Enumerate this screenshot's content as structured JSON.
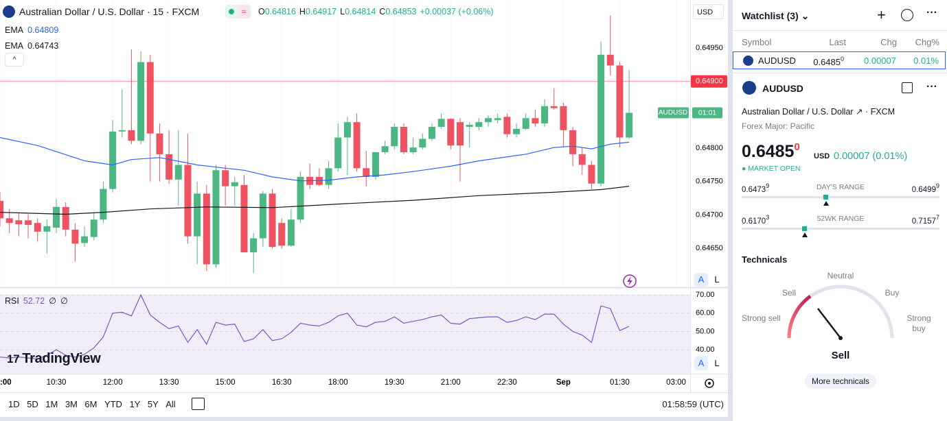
{
  "header": {
    "title": "Australian Dollar / U.S. Dollar · 15 · FXCM",
    "ohlc": [
      {
        "label": "O",
        "value": "0.64816"
      },
      {
        "label": "H",
        "value": "0.64917"
      },
      {
        "label": "L",
        "value": "0.64814"
      },
      {
        "label": "C",
        "value": "0.64853"
      }
    ],
    "change": "+0.00037 (+0.06%)"
  },
  "axis_currency": "USD",
  "scale_buttons": [
    "A",
    "L"
  ],
  "logo": "TradingView",
  "chart_data": [
    {
      "type": "candlestick",
      "open": [
        0.64721,
        0.64695,
        0.64692,
        0.64692,
        0.64688,
        0.64675,
        0.64681,
        0.64712,
        0.64678,
        0.64658,
        0.64667,
        0.64693,
        0.64739,
        0.64825,
        0.64827,
        0.64811,
        0.64929,
        0.64822,
        0.64791,
        0.64753,
        0.64775,
        0.64668,
        0.64732,
        0.64626,
        0.64767,
        0.64743,
        0.64745,
        0.64644,
        0.64665,
        0.64732,
        0.64688,
        0.64654,
        0.64693,
        0.64757,
        0.64757,
        0.64745,
        0.6477,
        0.64816,
        0.64839,
        0.6477,
        0.64757,
        0.64794,
        0.64803,
        0.64832,
        0.64794,
        0.64801,
        0.64814,
        0.64832,
        0.64844,
        0.64839,
        0.64832,
        0.64832,
        0.64839,
        0.64842,
        0.64847,
        0.64821,
        0.64829,
        0.64845,
        0.64837,
        0.64863,
        0.64863,
        0.64827,
        0.64791,
        0.64775,
        0.64747,
        0.6494,
        0.64924,
        0.64816
      ],
      "high": [
        0.64734,
        0.64709,
        0.64704,
        0.64701,
        0.64695,
        0.64693,
        0.64724,
        0.64719,
        0.64688,
        0.64683,
        0.64704,
        0.6475,
        0.64842,
        0.64888,
        0.64948,
        0.64945,
        0.6494,
        0.64837,
        0.64827,
        0.64827,
        0.64822,
        0.6475,
        0.64745,
        0.64775,
        0.64775,
        0.64757,
        0.6476,
        0.64673,
        0.64736,
        0.64739,
        0.64695,
        0.64709,
        0.64765,
        0.64777,
        0.6477,
        0.64781,
        0.64837,
        0.64847,
        0.64852,
        0.64796,
        0.64794,
        0.64811,
        0.64837,
        0.64837,
        0.64816,
        0.64822,
        0.64837,
        0.64852,
        0.64845,
        0.64845,
        0.64839,
        0.64845,
        0.64849,
        0.64852,
        0.64852,
        0.64837,
        0.64852,
        0.64858,
        0.64873,
        0.6489,
        0.64868,
        0.64832,
        0.64801,
        0.64781,
        0.6496,
        0.64999,
        0.64929,
        0.64917
      ],
      "low": [
        0.64683,
        0.64673,
        0.64668,
        0.64665,
        0.6466,
        0.64642,
        0.64673,
        0.64668,
        0.6463,
        0.64652,
        0.64662,
        0.64688,
        0.64734,
        0.64816,
        0.64806,
        0.64806,
        0.6475,
        0.6475,
        0.64747,
        0.64714,
        0.64657,
        0.64626,
        0.64616,
        0.64621,
        0.64714,
        0.64714,
        0.64644,
        0.64613,
        0.64652,
        0.6465,
        0.6465,
        0.64652,
        0.64688,
        0.64739,
        0.64743,
        0.64739,
        0.64765,
        0.6476,
        0.64765,
        0.64743,
        0.64753,
        0.64791,
        0.64798,
        0.64791,
        0.64791,
        0.64798,
        0.64811,
        0.64829,
        0.64798,
        0.6475,
        0.64801,
        0.64827,
        0.64832,
        0.64837,
        0.64816,
        0.64816,
        0.64827,
        0.64832,
        0.64832,
        0.64858,
        0.64801,
        0.64773,
        0.6476,
        0.64739,
        0.64743,
        0.64909,
        0.64801,
        0.64814
      ],
      "close": [
        0.64695,
        0.64688,
        0.64686,
        0.64685,
        0.64675,
        0.64683,
        0.64712,
        0.64678,
        0.64657,
        0.64668,
        0.64693,
        0.64739,
        0.64825,
        0.64827,
        0.64811,
        0.64929,
        0.64822,
        0.64791,
        0.64753,
        0.64775,
        0.64668,
        0.64732,
        0.64626,
        0.64767,
        0.64743,
        0.64749,
        0.64644,
        0.64665,
        0.64732,
        0.64652,
        0.64654,
        0.64693,
        0.64757,
        0.64745,
        0.64745,
        0.6477,
        0.64816,
        0.64839,
        0.6477,
        0.64757,
        0.64794,
        0.64803,
        0.64832,
        0.64794,
        0.64801,
        0.64814,
        0.64832,
        0.64844,
        0.64804,
        0.64804,
        0.64835,
        0.64839,
        0.64845,
        0.64845,
        0.64821,
        0.64829,
        0.64845,
        0.64837,
        0.64863,
        0.6486,
        0.64827,
        0.64791,
        0.64775,
        0.64747,
        0.6494,
        0.64924,
        0.64816,
        0.64853
      ],
      "up_color": "#4cb782",
      "down_color": "#ef5361",
      "xlim": [
        0,
        73.5
      ],
      "xticks": [
        {
          "value": 0,
          "label": ":00"
        },
        {
          "value": 6,
          "label": "10:30"
        },
        {
          "value": 12,
          "label": "12:00"
        },
        {
          "value": 18,
          "label": "13:30"
        },
        {
          "value": 24,
          "label": "15:00"
        },
        {
          "value": 30,
          "label": "16:30"
        },
        {
          "value": 36,
          "label": "18:00"
        },
        {
          "value": 42,
          "label": "19:30"
        },
        {
          "value": 48,
          "label": "21:00"
        },
        {
          "value": 54,
          "label": "22:30"
        },
        {
          "value": 60,
          "label": "Sep"
        },
        {
          "value": 66,
          "label": "01:30"
        },
        {
          "value": 72,
          "label": "03:00"
        }
      ],
      "ylim": [
        0.64606,
        0.65022
      ],
      "yticks": [
        {
          "value": 0.6465,
          "label": "0.64650"
        },
        {
          "value": 0.647,
          "label": "0.64700"
        },
        {
          "value": 0.6475,
          "label": "0.64750"
        },
        {
          "value": 0.648,
          "label": "0.64800"
        },
        {
          "value": 0.6495,
          "label": "0.64950"
        }
      ],
      "grid": false,
      "series": [
        {
          "name": "EMA",
          "legend_value": "0.64809",
          "color": "#2962ff",
          "x": [
            0,
            4,
            9,
            12,
            14,
            17,
            21,
            24,
            26,
            29,
            32,
            35,
            38,
            41,
            44,
            48,
            51,
            56,
            59,
            61,
            63,
            65,
            67
          ],
          "values": [
            0.64816,
            0.64804,
            0.64781,
            0.64775,
            0.64783,
            0.64786,
            0.64775,
            0.6477,
            0.64767,
            0.64757,
            0.64751,
            0.64752,
            0.64757,
            0.6476,
            0.64765,
            0.64773,
            0.64781,
            0.64791,
            0.64801,
            0.64803,
            0.64799,
            0.64806,
            0.64809
          ]
        },
        {
          "name": "EMA",
          "legend_value": "0.64743",
          "color": "#131722",
          "x": [
            0,
            7,
            11,
            16,
            22,
            29,
            33,
            37,
            44,
            51,
            59,
            64,
            67
          ],
          "values": [
            0.64704,
            0.64701,
            0.64704,
            0.64709,
            0.64712,
            0.64711,
            0.64714,
            0.64717,
            0.64722,
            0.64729,
            0.64734,
            0.64738,
            0.64743
          ]
        }
      ],
      "price_line": {
        "value": 0.649,
        "label": "0.64900",
        "color": "#f23645"
      },
      "last_price": {
        "symbol": "AUDUSD",
        "countdown": "01:01"
      }
    },
    {
      "type": "line",
      "name": "RSI",
      "legend_value": "52.72",
      "legend_extras": [
        "∅",
        "∅"
      ],
      "color": "#7e57c2",
      "values": [
        36,
        35.5,
        36,
        35.5,
        35,
        37,
        40,
        37,
        36,
        37.5,
        41,
        47,
        60,
        60.5,
        58.5,
        70,
        59,
        55,
        51.5,
        53,
        44,
        51,
        43,
        55,
        53.5,
        54,
        44.5,
        46,
        51,
        45,
        46,
        49.5,
        54.5,
        53.5,
        53,
        55,
        58.5,
        60,
        53.5,
        52.5,
        55,
        55.5,
        58,
        54.5,
        55.5,
        56.5,
        58,
        59,
        54.5,
        54,
        57,
        57.5,
        58,
        58,
        55,
        56,
        58,
        56.5,
        59.5,
        59.5,
        54,
        50,
        48,
        44,
        64,
        62.5,
        50.5,
        52.72
      ],
      "ylim": [
        26.9,
        71.9
      ],
      "yticks": [
        {
          "value": 40,
          "label": "40.00"
        },
        {
          "value": 50,
          "label": "50.00"
        },
        {
          "value": 60,
          "label": "60.00"
        },
        {
          "value": 70,
          "label": "70.00"
        }
      ]
    }
  ],
  "toolbar": {
    "periods": [
      "1D",
      "5D",
      "1M",
      "3M",
      "6M",
      "YTD",
      "1Y",
      "5Y",
      "All"
    ],
    "clock": "01:58:59 (UTC)"
  },
  "watchlist": {
    "title": "Watchlist (3)",
    "columns": [
      "Symbol",
      "Last",
      "Chg",
      "Chg%"
    ],
    "rows": [
      {
        "symbol": "AUDUSD",
        "last": "0.6485",
        "last_sup": "0",
        "chg": "0.00007",
        "chg_pct": "0.01%"
      }
    ]
  },
  "details": {
    "symbol": "AUDUSD",
    "name": "Australian Dollar / U.S. Dollar",
    "exchange": "FXCM",
    "category": "Forex Major: Pacific",
    "price": "0.6485",
    "price_sup": "0",
    "currency": "USD",
    "change": "0.00007 (0.01%)",
    "status": "MARKET OPEN",
    "ranges": [
      {
        "low": "0.6473",
        "low_sup": "9",
        "label": "DAY'S RANGE",
        "high": "0.6499",
        "high_sup": "9"
      },
      {
        "low": "0.6170",
        "low_sup": "3",
        "label": "52WK RANGE",
        "high": "0.7157",
        "high_sup": "7"
      }
    ]
  },
  "technicals": {
    "title": "Technicals",
    "labels": {
      "neutral": "Neutral",
      "sell": "Sell",
      "buy": "Buy",
      "strong_sell": "Strong sell",
      "strong_buy": "Strong buy"
    },
    "rating": "Sell",
    "button": "More technicals"
  }
}
